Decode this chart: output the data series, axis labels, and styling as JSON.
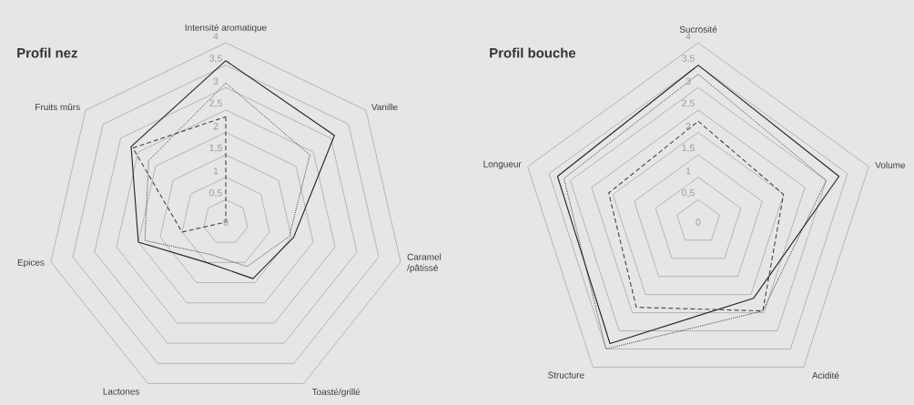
{
  "chart_data": [
    {
      "type": "radar",
      "title": "Profil nez",
      "grid": true,
      "categories": [
        "Intensité aromatique",
        "Vanille",
        "Caramel /pâtissé",
        "Toasté/grillé",
        "Lactones",
        "Epices",
        "Fruits mûrs"
      ],
      "ylim": [
        0,
        4
      ],
      "yticks": [
        0,
        {
          "value": 0.5,
          "label": "0,5"
        },
        1,
        {
          "value": 1.5,
          "label": "1,5"
        },
        2,
        {
          "value": 2.5,
          "label": "2,5"
        },
        3,
        {
          "value": 3.5,
          "label": "3,5"
        },
        4
      ],
      "series": [
        {
          "color": "#222222",
          "line_style": "solid",
          "values": [
            3.6,
            3.1,
            1.55,
            1.4,
            1.0,
            2.0,
            2.7
          ]
        },
        {
          "color": "#333333",
          "line_style": "dotted",
          "values": [
            3.1,
            2.4,
            1.45,
            1.1,
            0.8,
            1.85,
            2.2
          ]
        },
        {
          "color": "#444444",
          "line_style": "dashed",
          "values": [
            2.35,
            0,
            0,
            0,
            0,
            1.0,
            2.65
          ]
        }
      ]
    },
    {
      "type": "radar",
      "title": "Profil bouche",
      "grid": true,
      "categories": [
        "Sucrosité",
        "Volume",
        "Acidité",
        "Structure",
        "Longueur"
      ],
      "ylim": [
        0,
        4
      ],
      "yticks": [
        0,
        {
          "value": 0.5,
          "label": "0,5"
        },
        1,
        {
          "value": 1.5,
          "label": "1,5"
        },
        2,
        {
          "value": 2.5,
          "label": "2,5"
        },
        3,
        {
          "value": 3.5,
          "label": "3,5"
        },
        4
      ],
      "series": [
        {
          "color": "#222222",
          "line_style": "solid",
          "values": [
            3.5,
            3.3,
            2.1,
            3.35,
            3.3
          ]
        },
        {
          "color": "#333333",
          "line_style": "dotted",
          "values": [
            3.3,
            3.0,
            2.45,
            3.5,
            3.15
          ]
        },
        {
          "color": "#444444",
          "line_style": "dashed",
          "values": [
            2.25,
            2.0,
            2.45,
            2.35,
            2.1
          ]
        }
      ]
    }
  ]
}
